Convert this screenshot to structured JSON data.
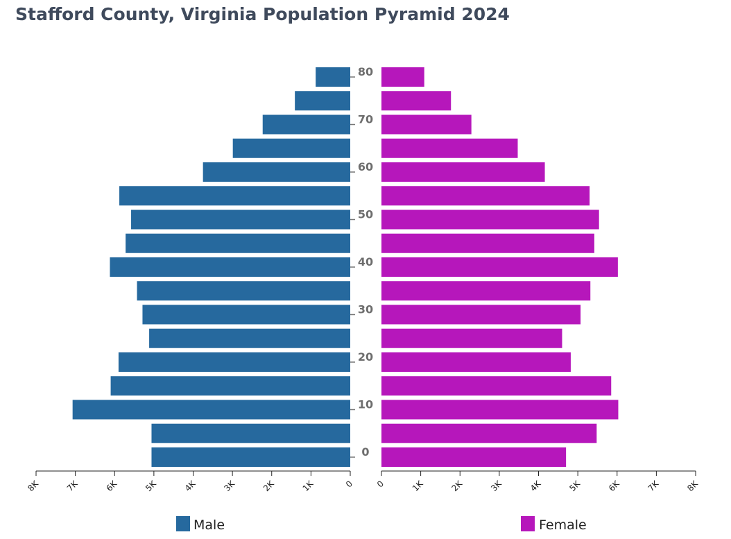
{
  "title": "Stafford County, Virginia Population Pyramid 2024",
  "chart_data": {
    "type": "bar",
    "orientation": "horizontal-pyramid",
    "title": "Stafford County, Virginia Population Pyramid 2024",
    "age_groups": [
      0,
      5,
      10,
      15,
      20,
      25,
      30,
      35,
      40,
      45,
      50,
      55,
      60,
      65,
      70,
      75,
      80
    ],
    "age_tick_labels": [
      "0",
      "10",
      "20",
      "30",
      "40",
      "50",
      "60",
      "70",
      "80"
    ],
    "x_tick_labels_left": [
      "8K",
      "7K",
      "6K",
      "5K",
      "4K",
      "3K",
      "2K",
      "1K",
      "0"
    ],
    "x_tick_labels_right": [
      "0",
      "1K",
      "2K",
      "3K",
      "4K",
      "5K",
      "6K",
      "7K",
      "8K"
    ],
    "xlim": [
      0,
      8000
    ],
    "series": [
      {
        "name": "Male",
        "color": "#26699e",
        "values": [
          5060,
          5060,
          7070,
          6100,
          5900,
          5120,
          5290,
          5430,
          6120,
          5720,
          5580,
          5880,
          3750,
          2990,
          2230,
          1410,
          880
        ]
      },
      {
        "name": "Female",
        "color": "#b617bb",
        "values": [
          4700,
          5480,
          6030,
          5850,
          4820,
          4600,
          5070,
          5320,
          6020,
          5420,
          5540,
          5300,
          4160,
          3470,
          2290,
          1770,
          1090
        ]
      }
    ],
    "legend": {
      "placement": "bottom",
      "items": [
        "Male",
        "Female"
      ]
    },
    "grid": false
  }
}
